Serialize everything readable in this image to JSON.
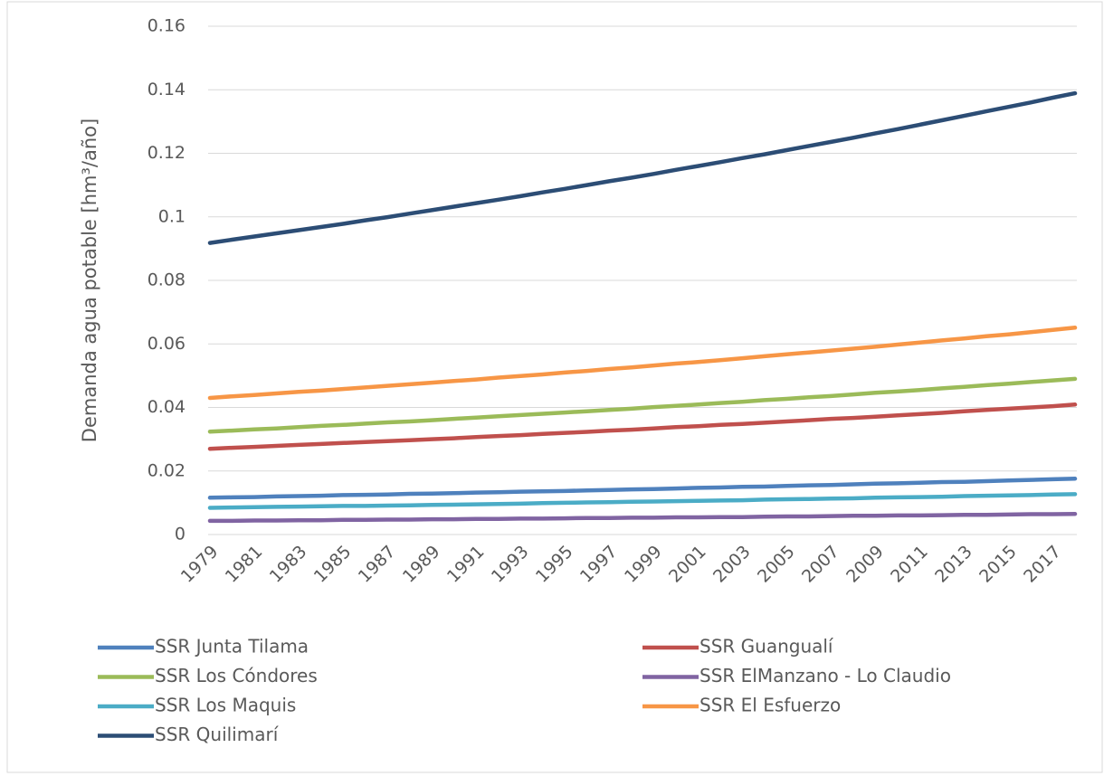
{
  "chart_data": {
    "type": "line",
    "y_label": "Demanda agua potable [hm³/año]",
    "categories": [
      "1979",
      null,
      "1981",
      null,
      "1983",
      null,
      "1985",
      null,
      "1987",
      null,
      "1989",
      null,
      "1991",
      null,
      "1993",
      null,
      "1995",
      null,
      "1997",
      null,
      "1999",
      null,
      "2001",
      null,
      "2003",
      null,
      "2005",
      null,
      "2007",
      null,
      "2009",
      null,
      "2011",
      null,
      "2013",
      null,
      "2015",
      null,
      "2017",
      null
    ],
    "ylim": [
      0,
      0.16
    ],
    "yticks": [
      0,
      0.02,
      0.04,
      0.06,
      0.08,
      0.1,
      0.12,
      0.14,
      0.16
    ],
    "grid": true,
    "legend": "bottom",
    "series": [
      {
        "name": "SSR Junta Tilama",
        "color": "#4f81bd",
        "values": [
          0.0116,
          0.0117,
          0.0118,
          0.012,
          0.0121,
          0.0122,
          0.0124,
          0.0125,
          0.0126,
          0.0128,
          0.0129,
          0.013,
          0.0132,
          0.0133,
          0.0135,
          0.0136,
          0.0137,
          0.0139,
          0.014,
          0.0142,
          0.0143,
          0.0145,
          0.0147,
          0.0148,
          0.015,
          0.0151,
          0.0153,
          0.0155,
          0.0156,
          0.0158,
          0.016,
          0.0161,
          0.0163,
          0.0165,
          0.0166,
          0.0168,
          0.017,
          0.0172,
          0.0174,
          0.0176
        ]
      },
      {
        "name": "SSR Guangualí",
        "color": "#c0504d",
        "values": [
          0.027,
          0.0273,
          0.0276,
          0.0279,
          0.0282,
          0.0285,
          0.0288,
          0.0291,
          0.0294,
          0.0297,
          0.03,
          0.0303,
          0.0307,
          0.031,
          0.0313,
          0.0317,
          0.032,
          0.0323,
          0.0327,
          0.033,
          0.0334,
          0.0338,
          0.0341,
          0.0345,
          0.0348,
          0.0352,
          0.0356,
          0.036,
          0.0364,
          0.0367,
          0.0371,
          0.0375,
          0.0379,
          0.0383,
          0.0388,
          0.0392,
          0.0396,
          0.04,
          0.0404,
          0.0409
        ]
      },
      {
        "name": "SSR Los Cóndores",
        "color": "#9bbb59",
        "values": [
          0.0324,
          0.0327,
          0.0331,
          0.0334,
          0.0338,
          0.0342,
          0.0345,
          0.0349,
          0.0353,
          0.0356,
          0.036,
          0.0364,
          0.0368,
          0.0372,
          0.0376,
          0.038,
          0.0384,
          0.0388,
          0.0392,
          0.0396,
          0.0401,
          0.0405,
          0.0409,
          0.0414,
          0.0418,
          0.0423,
          0.0427,
          0.0432,
          0.0436,
          0.0441,
          0.0446,
          0.045,
          0.0455,
          0.046,
          0.0465,
          0.047,
          0.0475,
          0.048,
          0.0485,
          0.049
        ]
      },
      {
        "name": "SSR ElManzano - Lo Claudio",
        "color": "#8064a2",
        "values": [
          0.0043,
          0.0043,
          0.0044,
          0.0044,
          0.0045,
          0.0045,
          0.0046,
          0.0046,
          0.0047,
          0.0047,
          0.0048,
          0.0048,
          0.0049,
          0.0049,
          0.005,
          0.005,
          0.0051,
          0.0052,
          0.0052,
          0.0053,
          0.0053,
          0.0054,
          0.0054,
          0.0055,
          0.0055,
          0.0056,
          0.0057,
          0.0057,
          0.0058,
          0.0059,
          0.0059,
          0.006,
          0.006,
          0.0061,
          0.0062,
          0.0062,
          0.0063,
          0.0064,
          0.0064,
          0.0065
        ]
      },
      {
        "name": "SSR Los Maquis",
        "color": "#4bacc6",
        "values": [
          0.0084,
          0.0085,
          0.0086,
          0.0087,
          0.0088,
          0.0089,
          0.009,
          0.009,
          0.0091,
          0.0092,
          0.0093,
          0.0094,
          0.0095,
          0.0096,
          0.0097,
          0.0099,
          0.01,
          0.0101,
          0.0102,
          0.0103,
          0.0104,
          0.0105,
          0.0106,
          0.0107,
          0.0108,
          0.011,
          0.0111,
          0.0112,
          0.0113,
          0.0114,
          0.0116,
          0.0117,
          0.0118,
          0.0119,
          0.0121,
          0.0122,
          0.0123,
          0.0124,
          0.0126,
          0.0127
        ]
      },
      {
        "name": "SSR El Esfuerzo",
        "color": "#f79646",
        "values": [
          0.043,
          0.0435,
          0.0439,
          0.0444,
          0.0449,
          0.0453,
          0.0458,
          0.0463,
          0.0468,
          0.0473,
          0.0478,
          0.0483,
          0.0488,
          0.0494,
          0.0499,
          0.0504,
          0.051,
          0.0515,
          0.0521,
          0.0526,
          0.0532,
          0.0538,
          0.0543,
          0.0549,
          0.0555,
          0.0561,
          0.0567,
          0.0573,
          0.0579,
          0.0585,
          0.0591,
          0.0598,
          0.0604,
          0.0611,
          0.0617,
          0.0624,
          0.063,
          0.0637,
          0.0644,
          0.0651
        ]
      },
      {
        "name": "SSR Quilimarí",
        "color": "#2c4d75",
        "values": [
          0.0918,
          0.0928,
          0.0938,
          0.0948,
          0.0958,
          0.0968,
          0.0978,
          0.0989,
          0.0999,
          0.101,
          0.1021,
          0.1032,
          0.1043,
          0.1054,
          0.1065,
          0.1077,
          0.1088,
          0.11,
          0.1112,
          0.1123,
          0.1135,
          0.1148,
          0.116,
          0.1172,
          0.1185,
          0.1197,
          0.121,
          0.1223,
          0.1236,
          0.1249,
          0.1263,
          0.1276,
          0.129,
          0.1304,
          0.1318,
          0.1332,
          0.1346,
          0.136,
          0.1375,
          0.1389
        ]
      }
    ]
  }
}
